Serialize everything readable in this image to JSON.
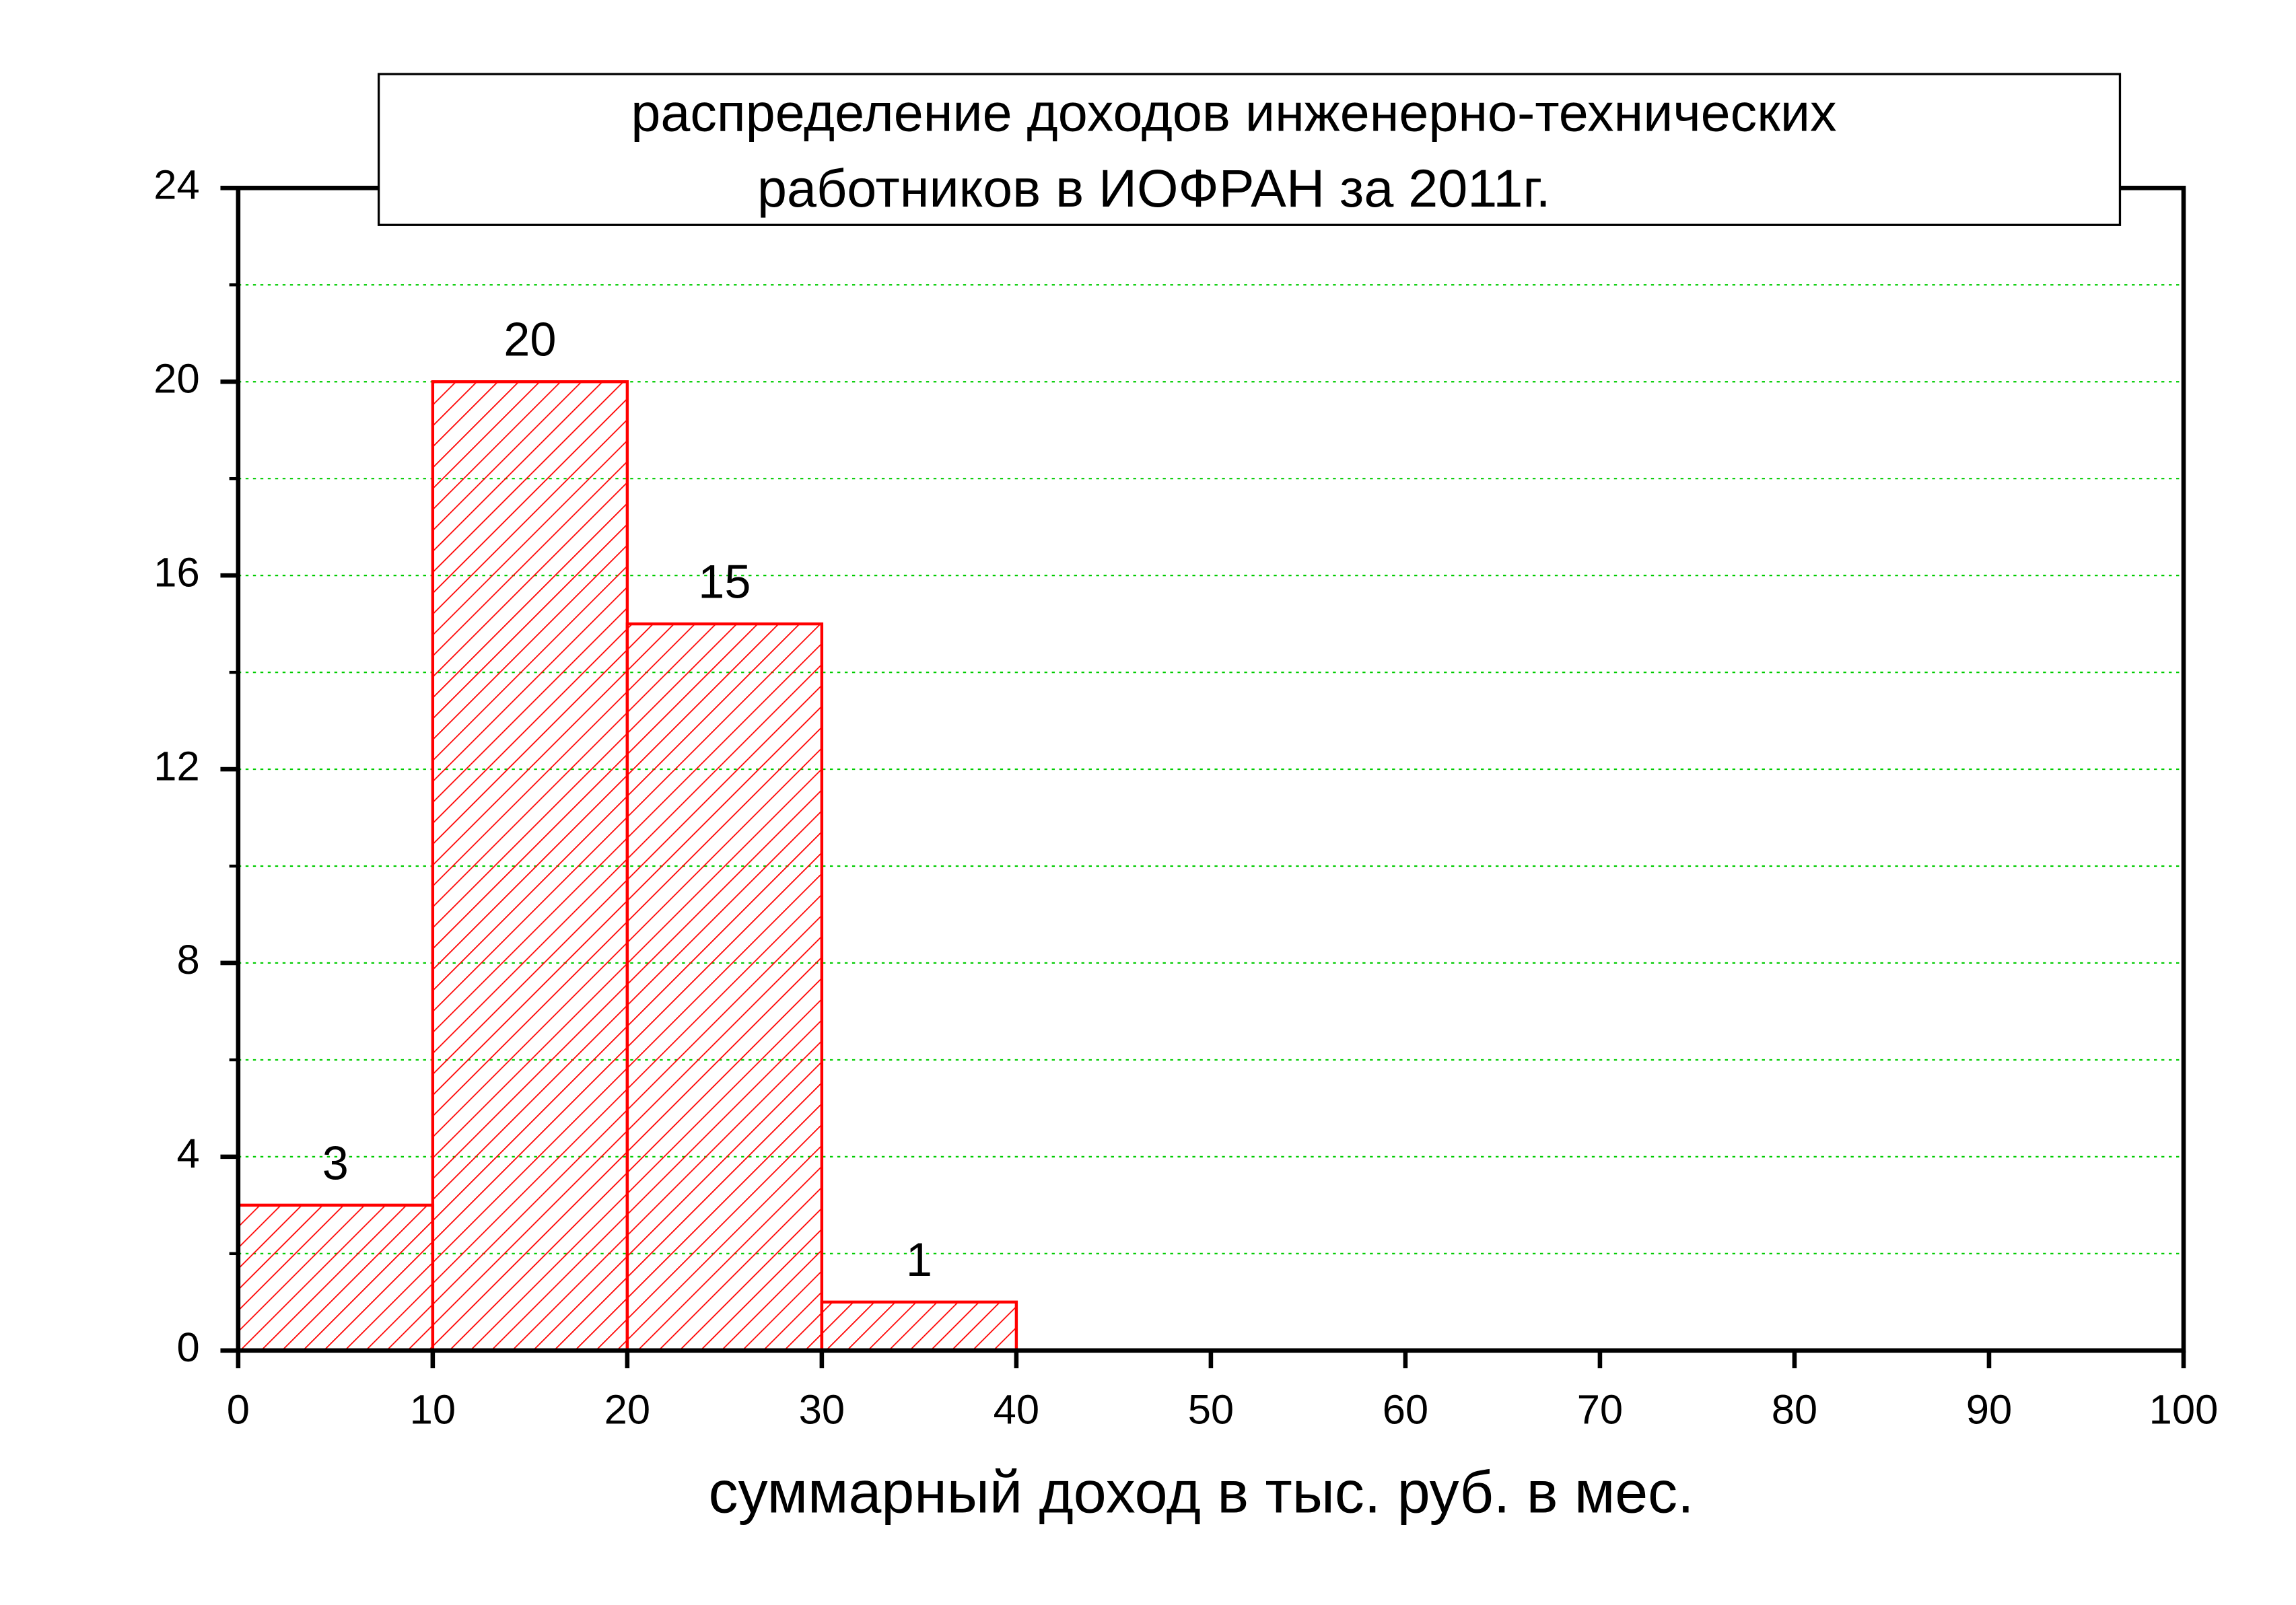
{
  "chart_data": {
    "type": "histogram",
    "title": [
      "распределение доходов инженерно-технических",
      "работников в ИОФРАН за 2011г."
    ],
    "xlabel": "суммарный доход в тыс. руб. в мес.",
    "bins": [
      0,
      10,
      20,
      30,
      40
    ],
    "values": [
      3,
      20,
      15,
      1
    ],
    "color": "#ff0000",
    "xlim": [
      0,
      100
    ],
    "xticks": [
      0,
      10,
      20,
      30,
      40,
      50,
      60,
      70,
      80,
      90,
      100
    ],
    "ylim": [
      0,
      24
    ],
    "yticks": [
      0,
      4,
      8,
      12,
      16,
      20,
      24
    ],
    "minor_yticks": [
      2,
      6,
      10,
      14,
      18,
      22
    ],
    "grid": true,
    "grid_color": "#00cc00"
  }
}
